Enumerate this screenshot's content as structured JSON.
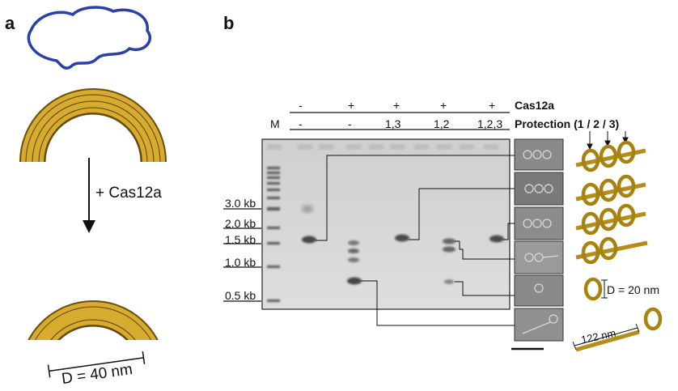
{
  "panels": {
    "a": "a",
    "b": "b"
  },
  "panel_a": {
    "reaction_label": "+ Cas12a",
    "diameter_label": "D = 40 nm"
  },
  "panel_b": {
    "row_labels": {
      "cas12a": "Cas12a",
      "protection": "Protection (1 / 2 / 3)"
    },
    "marker_label": "M",
    "lanes": [
      {
        "cas12a": "-",
        "protection": "-"
      },
      {
        "cas12a": "+",
        "protection": "-"
      },
      {
        "cas12a": "+",
        "protection": "1,3"
      },
      {
        "cas12a": "+",
        "protection": "1,2"
      },
      {
        "cas12a": "+",
        "protection": "1,2,3"
      }
    ],
    "ladder": [
      "3.0 kb",
      "2.0 kb",
      "1.5 kb",
      "1.0 kb",
      "0.5 kb"
    ],
    "ring_diameter_label": "D = 20 nm",
    "rod_length_label": "122 nm"
  },
  "colors": {
    "dna": "#2b3fa8",
    "origami": "#c9a12a",
    "gel": "#d6d6d6"
  }
}
